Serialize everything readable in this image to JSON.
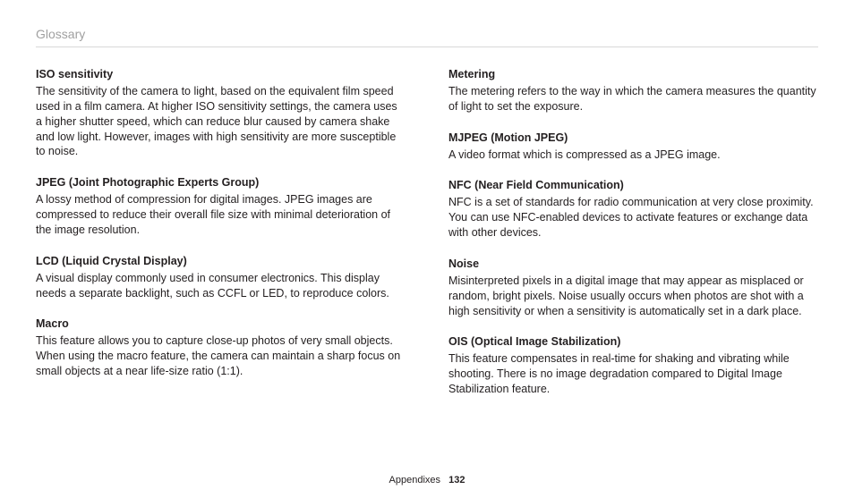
{
  "page": {
    "section": "Glossary",
    "footer_label": "Appendixes",
    "page_number": "132"
  },
  "left": [
    {
      "term": "ISO sensitivity",
      "def": "The sensitivity of the camera to light, based on the equivalent film speed used in a film camera. At higher ISO sensitivity settings, the camera uses a higher shutter speed, which can reduce blur caused by camera shake and low light. However, images with high sensitivity are more susceptible to noise."
    },
    {
      "term": "JPEG (Joint Photographic Experts Group)",
      "def": "A lossy method of compression for digital images. JPEG images are compressed to reduce their overall file size with minimal deterioration of the image resolution."
    },
    {
      "term": "LCD (Liquid Crystal Display)",
      "def": "A visual display commonly used in consumer electronics. This display needs a separate backlight, such as CCFL or LED, to reproduce colors."
    },
    {
      "term": "Macro",
      "def": "This feature allows you to capture close-up photos of very small objects. When using the macro feature, the camera can maintain a sharp focus on small objects at a near life-size ratio (1:1)."
    }
  ],
  "right": [
    {
      "term": "Metering",
      "def": "The metering refers to the way in which the camera measures the quantity of light to set the exposure."
    },
    {
      "term": "MJPEG (Motion JPEG)",
      "def": "A video format which is compressed as a JPEG image."
    },
    {
      "term": "NFC (Near Field Communication)",
      "def": "NFC is a set of standards for radio communication at very close proximity. You can use NFC-enabled devices to activate features or exchange data with other devices."
    },
    {
      "term": "Noise",
      "def": "Misinterpreted pixels in a digital image that may appear as misplaced or random, bright pixels. Noise usually occurs when photos are shot with a high sensitivity or when a sensitivity is automatically set in a dark place."
    },
    {
      "term": "OIS (Optical Image Stabilization)",
      "def": "This feature compensates in real-time for shaking and vibrating while shooting. There is no image degradation compared to Digital Image Stabilization feature."
    }
  ]
}
